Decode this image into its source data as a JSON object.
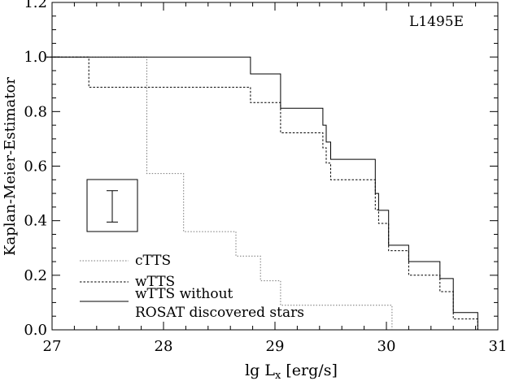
{
  "chart_data": {
    "type": "line",
    "title": "L1495E",
    "xlabel": "lg L",
    "xlabel_sub": "x",
    "xlabel_unit": " [erg/s]",
    "ylabel": "Kaplan-Meier-Estimator",
    "xlim": [
      27,
      31
    ],
    "ylim": [
      0,
      1.2
    ],
    "xticks": [
      "27",
      "28",
      "29",
      "30",
      "31"
    ],
    "yticks": [
      "0.0",
      "0.2",
      "0.4",
      "0.6",
      "0.8",
      "1.0",
      "1.2"
    ],
    "legend_position": "bottom-left",
    "series": [
      {
        "name": "cTTS",
        "style": "dotted-light",
        "steps": [
          [
            26.95,
            1.0
          ],
          [
            27.85,
            1.0
          ],
          [
            27.85,
            0.573
          ],
          [
            28.18,
            0.573
          ],
          [
            28.18,
            0.36
          ],
          [
            28.65,
            0.36
          ],
          [
            28.65,
            0.27
          ],
          [
            28.87,
            0.27
          ],
          [
            28.87,
            0.18
          ],
          [
            29.05,
            0.18
          ],
          [
            29.05,
            0.09
          ],
          [
            30.05,
            0.09
          ],
          [
            30.05,
            0.0
          ]
        ]
      },
      {
        "name": "wTTS",
        "style": "dashed",
        "steps": [
          [
            26.95,
            1.0
          ],
          [
            27.33,
            1.0
          ],
          [
            27.33,
            0.889
          ],
          [
            28.78,
            0.889
          ],
          [
            28.78,
            0.833
          ],
          [
            29.05,
            0.833
          ],
          [
            29.05,
            0.722
          ],
          [
            29.43,
            0.722
          ],
          [
            29.43,
            0.667
          ],
          [
            29.46,
            0.667
          ],
          [
            29.46,
            0.611
          ],
          [
            29.5,
            0.611
          ],
          [
            29.5,
            0.55
          ],
          [
            29.9,
            0.55
          ],
          [
            29.9,
            0.44
          ],
          [
            29.93,
            0.44
          ],
          [
            29.93,
            0.39
          ],
          [
            30.02,
            0.39
          ],
          [
            30.02,
            0.29
          ],
          [
            30.2,
            0.29
          ],
          [
            30.2,
            0.2
          ],
          [
            30.48,
            0.2
          ],
          [
            30.48,
            0.14
          ],
          [
            30.6,
            0.14
          ],
          [
            30.6,
            0.04
          ],
          [
            30.82,
            0.04
          ],
          [
            30.82,
            0.0
          ]
        ]
      },
      {
        "name": "wTTS without",
        "name_line2": "ROSAT discovered stars",
        "style": "solid",
        "steps": [
          [
            26.95,
            1.0
          ],
          [
            28.78,
            1.0
          ],
          [
            28.78,
            0.938
          ],
          [
            29.05,
            0.938
          ],
          [
            29.05,
            0.812
          ],
          [
            29.43,
            0.812
          ],
          [
            29.43,
            0.75
          ],
          [
            29.46,
            0.75
          ],
          [
            29.46,
            0.688
          ],
          [
            29.5,
            0.688
          ],
          [
            29.5,
            0.625
          ],
          [
            29.9,
            0.625
          ],
          [
            29.9,
            0.5
          ],
          [
            29.93,
            0.5
          ],
          [
            29.93,
            0.438
          ],
          [
            30.02,
            0.438
          ],
          [
            30.02,
            0.31
          ],
          [
            30.2,
            0.31
          ],
          [
            30.2,
            0.25
          ],
          [
            30.48,
            0.25
          ],
          [
            30.48,
            0.188
          ],
          [
            30.6,
            0.188
          ],
          [
            30.6,
            0.063
          ],
          [
            30.82,
            0.063
          ],
          [
            30.82,
            0.0
          ]
        ]
      }
    ],
    "error_bar": {
      "x": 27.5,
      "y_low": 0.395,
      "y_high": 0.51
    }
  }
}
